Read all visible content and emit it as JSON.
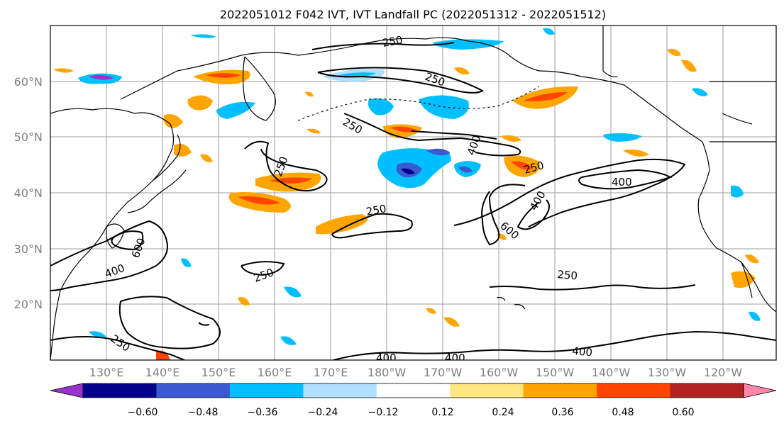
{
  "title": "2022051012 F042 IVT, IVT Landfall PC (2022051312 - 2022051512)",
  "lat_labels": [
    "60°N",
    "50°N",
    "40°N",
    "30°N",
    "20°N"
  ],
  "lon_labels": [
    "130°E",
    "140°E",
    "150°E",
    "160°E",
    "170°E",
    "180°W",
    "170°W",
    "160°W",
    "150°W",
    "140°W",
    "130°W",
    "120°W"
  ],
  "contour_labels": [
    "250",
    "250",
    "250",
    "250",
    "250",
    "250",
    "250",
    "250",
    "400",
    "400",
    "400",
    "400",
    "400",
    "400",
    "600",
    "600"
  ],
  "colorbar": {
    "ticks": [
      "−0.60",
      "−0.48",
      "−0.36",
      "−0.24",
      "−0.12",
      "0.12",
      "0.24",
      "0.36",
      "0.48",
      "0.60"
    ],
    "colors": [
      "#9932cc",
      "#00008b",
      "#3a5bd0",
      "#00bfff",
      "#b0e0ff",
      "#ffffff",
      "#ffe680",
      "#ffa500",
      "#ff4500",
      "#b22222",
      "#ff88aa"
    ]
  }
}
